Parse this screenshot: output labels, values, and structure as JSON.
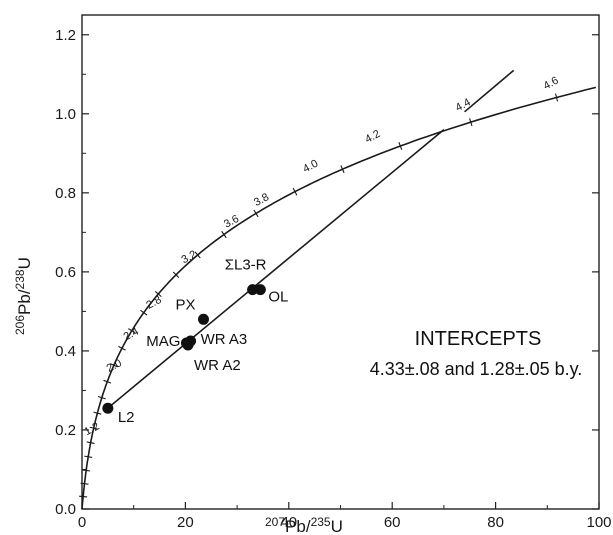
{
  "chart_data": {
    "type": "scatter",
    "xlabel_parts": {
      "sup": "207",
      "base": "Pb/",
      "sup2": "235",
      "base2": "U"
    },
    "ylabel_parts": {
      "sup": "206",
      "base": "Pb/",
      "sup2": "238",
      "base2": "U"
    },
    "xlim": [
      0,
      100
    ],
    "ylim": [
      0,
      1.25
    ],
    "x_ticks": [
      0,
      20,
      40,
      60,
      80,
      100
    ],
    "x_tick_labels": [
      "0",
      "20",
      "40",
      "60",
      "80",
      "100"
    ],
    "y_ticks": [
      0.0,
      0.2,
      0.4,
      0.6,
      0.8,
      1.0,
      1.2
    ],
    "y_tick_labels": [
      "0.0",
      "0.2",
      "0.4",
      "0.6",
      "0.8",
      "1.0",
      "1.2"
    ],
    "concordia_age_labels": [
      {
        "text": "1.2",
        "x": 2.2,
        "y": 0.195
      },
      {
        "text": "2.0",
        "x": 6.5,
        "y": 0.355
      },
      {
        "text": "2.4",
        "x": 9.8,
        "y": 0.435
      },
      {
        "text": "2.8",
        "x": 14.2,
        "y": 0.515
      },
      {
        "text": "3.2",
        "x": 21.0,
        "y": 0.63
      },
      {
        "text": "3.6",
        "x": 29.2,
        "y": 0.72
      },
      {
        "text": "3.8",
        "x": 35.0,
        "y": 0.775
      },
      {
        "text": "4.0",
        "x": 44.5,
        "y": 0.86
      },
      {
        "text": "4.2",
        "x": 56.5,
        "y": 0.935
      },
      {
        "text": "4.4",
        "x": 74.0,
        "y": 1.015
      },
      {
        "text": "4.6",
        "x": 91.0,
        "y": 1.07
      }
    ],
    "points": [
      {
        "label": "L2",
        "x": 5.0,
        "y": 0.255
      },
      {
        "label": "MAG",
        "x": 20.2,
        "y": 0.42
      },
      {
        "label": "WR A3",
        "x": 21.0,
        "y": 0.425
      },
      {
        "label": "WR A2",
        "x": 20.5,
        "y": 0.415
      },
      {
        "label": "PX",
        "x": 23.5,
        "y": 0.48
      },
      {
        "label": "ΣL3-R",
        "x": 33.0,
        "y": 0.555
      },
      {
        "label": "OL",
        "x": 34.5,
        "y": 0.555
      }
    ],
    "point_text": {
      "L2": "L2",
      "MAG": "MAG",
      "WR A3": "WR A3",
      "WR A2": "WR A2",
      "PX": "PX",
      "ΣL3-R": "ΣL3-R",
      "OL": "OL"
    },
    "discordia": {
      "x_start": 4.5,
      "y_start": 0.25,
      "x_end": 70.0,
      "y_end": 0.96
    },
    "extension": {
      "x_start": 74.0,
      "y_start": 1.005,
      "x_end": 83.5,
      "y_end": 1.11
    },
    "annotation": {
      "title": "INTERCEPTS",
      "text": "4.33±.08 and 1.28±.05 b.y."
    },
    "grid": false
  }
}
